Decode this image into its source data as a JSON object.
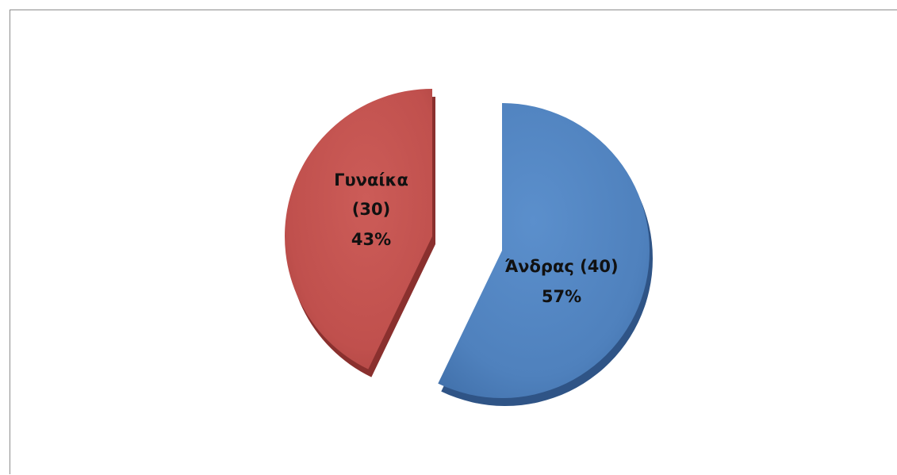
{
  "chart_data": {
    "type": "pie",
    "title": "",
    "slices": [
      {
        "category": "Ά​νδρας",
        "value": 40,
        "percent_label": "57%",
        "label_line1": "Άνδρας (40)",
        "label_line2": "57%",
        "color": "#4f81bd"
      },
      {
        "category": "Γυναίκα",
        "value": 30,
        "percent_label": "43%",
        "label_line1": "Γυναίκα",
        "label_line2": "(30)",
        "label_line3": "43%",
        "color": "#c0504d"
      }
    ],
    "legend": "none",
    "exploded": true,
    "style": "3d-shaded"
  }
}
